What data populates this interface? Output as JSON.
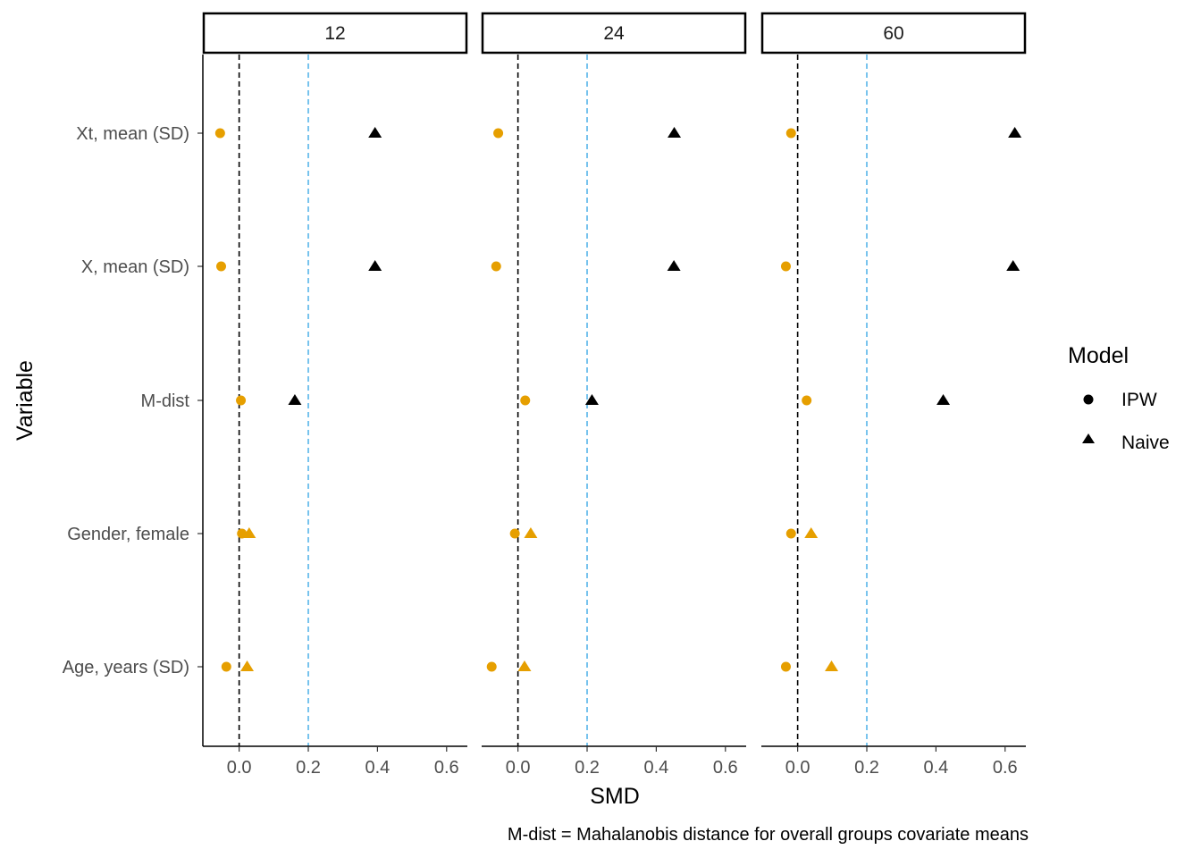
{
  "chart_data": {
    "type": "scatter",
    "xlabel": "SMD",
    "ylabel": "Variable",
    "xlim": [
      -0.105,
      0.66
    ],
    "x_ticks": [
      0.0,
      0.2,
      0.4,
      0.6
    ],
    "x_tick_labels": [
      "0.0",
      "0.2",
      "0.4",
      "0.6"
    ],
    "reference_lines": [
      {
        "x": 0.0,
        "color": "#000000",
        "style": "dashed"
      },
      {
        "x": 0.2,
        "color": "#56B4E9",
        "style": "dashed"
      }
    ],
    "categories": [
      "Xt, mean (SD)",
      "X, mean (SD)",
      "M-dist",
      "Gender, female",
      "Age, years (SD)"
    ],
    "facets": [
      {
        "label": "12",
        "points": [
          {
            "variable": "Xt, mean (SD)",
            "model": "IPW",
            "x": -0.055,
            "color": "#E69F00"
          },
          {
            "variable": "Xt, mean (SD)",
            "model": "Naive",
            "x": 0.393,
            "color": "#000000"
          },
          {
            "variable": "X, mean (SD)",
            "model": "IPW",
            "x": -0.052,
            "color": "#E69F00"
          },
          {
            "variable": "X, mean (SD)",
            "model": "Naive",
            "x": 0.393,
            "color": "#000000"
          },
          {
            "variable": "M-dist",
            "model": "IPW",
            "x": 0.005,
            "color": "#E69F00"
          },
          {
            "variable": "M-dist",
            "model": "Naive",
            "x": 0.161,
            "color": "#000000"
          },
          {
            "variable": "Gender, female",
            "model": "IPW",
            "x": 0.008,
            "color": "#E69F00"
          },
          {
            "variable": "Gender, female",
            "model": "Naive",
            "x": 0.029,
            "color": "#E69F00"
          },
          {
            "variable": "Age, years (SD)",
            "model": "IPW",
            "x": -0.037,
            "color": "#E69F00"
          },
          {
            "variable": "Age, years (SD)",
            "model": "Naive",
            "x": 0.023,
            "color": "#E69F00"
          }
        ]
      },
      {
        "label": "24",
        "points": [
          {
            "variable": "Xt, mean (SD)",
            "model": "IPW",
            "x": -0.057,
            "color": "#E69F00"
          },
          {
            "variable": "Xt, mean (SD)",
            "model": "Naive",
            "x": 0.452,
            "color": "#000000"
          },
          {
            "variable": "X, mean (SD)",
            "model": "IPW",
            "x": -0.063,
            "color": "#E69F00"
          },
          {
            "variable": "X, mean (SD)",
            "model": "Naive",
            "x": 0.451,
            "color": "#000000"
          },
          {
            "variable": "M-dist",
            "model": "IPW",
            "x": 0.021,
            "color": "#E69F00"
          },
          {
            "variable": "M-dist",
            "model": "Naive",
            "x": 0.214,
            "color": "#000000"
          },
          {
            "variable": "Gender, female",
            "model": "IPW",
            "x": -0.009,
            "color": "#E69F00"
          },
          {
            "variable": "Gender, female",
            "model": "Naive",
            "x": 0.037,
            "color": "#E69F00"
          },
          {
            "variable": "Age, years (SD)",
            "model": "IPW",
            "x": -0.076,
            "color": "#E69F00"
          },
          {
            "variable": "Age, years (SD)",
            "model": "Naive",
            "x": 0.019,
            "color": "#E69F00"
          }
        ]
      },
      {
        "label": "60",
        "points": [
          {
            "variable": "Xt, mean (SD)",
            "model": "IPW",
            "x": -0.019,
            "color": "#E69F00"
          },
          {
            "variable": "Xt, mean (SD)",
            "model": "Naive",
            "x": 0.628,
            "color": "#000000"
          },
          {
            "variable": "X, mean (SD)",
            "model": "IPW",
            "x": -0.034,
            "color": "#E69F00"
          },
          {
            "variable": "X, mean (SD)",
            "model": "Naive",
            "x": 0.623,
            "color": "#000000"
          },
          {
            "variable": "M-dist",
            "model": "IPW",
            "x": 0.026,
            "color": "#E69F00"
          },
          {
            "variable": "M-dist",
            "model": "Naive",
            "x": 0.421,
            "color": "#000000"
          },
          {
            "variable": "Gender, female",
            "model": "IPW",
            "x": -0.019,
            "color": "#E69F00"
          },
          {
            "variable": "Gender, female",
            "model": "Naive",
            "x": 0.039,
            "color": "#E69F00"
          },
          {
            "variable": "Age, years (SD)",
            "model": "IPW",
            "x": -0.034,
            "color": "#E69F00"
          },
          {
            "variable": "Age, years (SD)",
            "model": "Naive",
            "x": 0.098,
            "color": "#E69F00"
          }
        ]
      }
    ],
    "legend": {
      "title": "Model",
      "position": "right",
      "entries": [
        {
          "label": "IPW",
          "shape": "circle"
        },
        {
          "label": "Naive",
          "shape": "triangle"
        }
      ]
    },
    "caption": "M-dist = Mahalanobis distance for overall groups covariate means",
    "grid": false
  }
}
